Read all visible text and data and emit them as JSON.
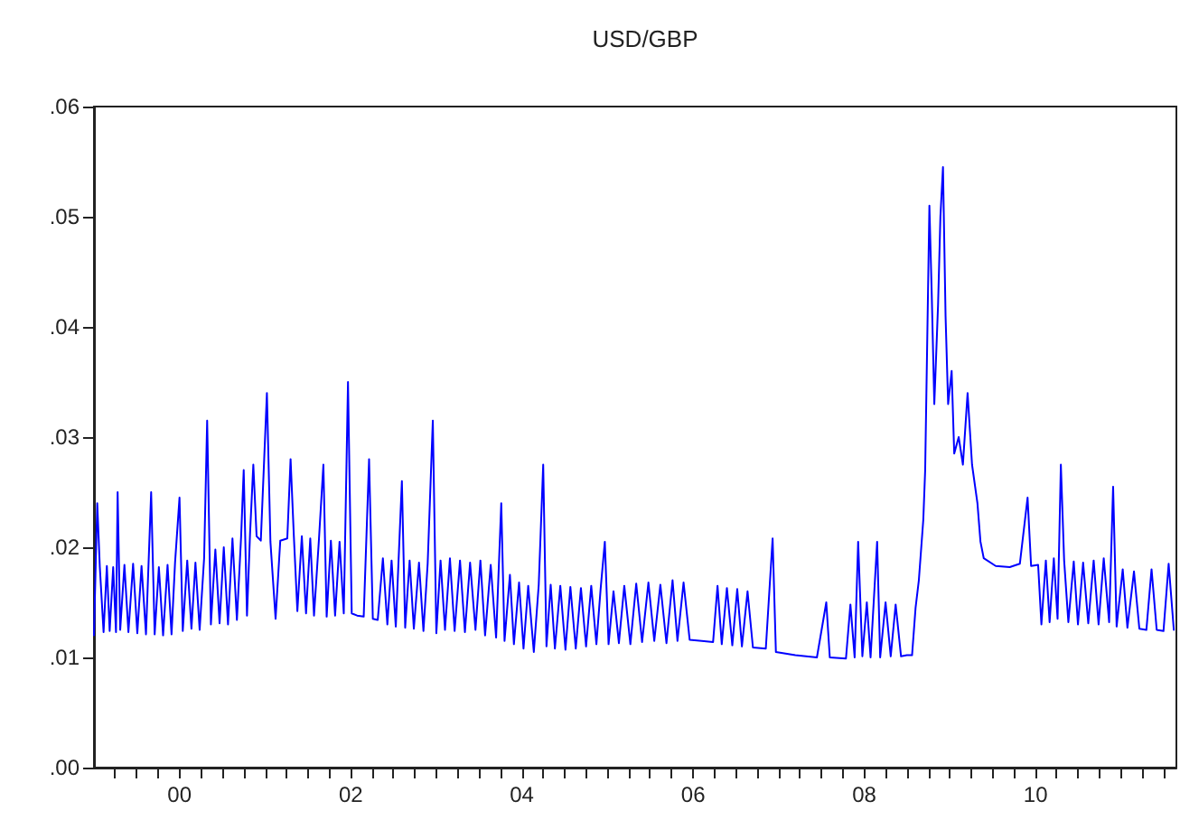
{
  "chart_data": {
    "type": "line",
    "title": "USD/GBP",
    "x": [
      "1999-01-01",
      "1999-01-15",
      "1999-01-26",
      "1999-02-11",
      "1999-02-25",
      "1999-03-09",
      "1999-03-24",
      "1999-04-05",
      "1999-04-12",
      "1999-04-23",
      "1999-05-11",
      "1999-05-28",
      "1999-06-17",
      "1999-07-05",
      "1999-07-23",
      "1999-08-11",
      "1999-09-02",
      "1999-09-17",
      "1999-10-05",
      "1999-10-23",
      "1999-11-11",
      "1999-11-28",
      "1999-12-13",
      "2000-01-01",
      "2000-01-15",
      "2000-02-03",
      "2000-02-21",
      "2000-03-09",
      "2000-03-27",
      "2000-04-15",
      "2000-04-28",
      "2000-05-14",
      "2000-06-02",
      "2000-06-20",
      "2000-07-08",
      "2000-07-26",
      "2000-08-14",
      "2000-09-02",
      "2000-09-20",
      "2000-10-01",
      "2000-10-15",
      "2000-10-28",
      "2000-11-11",
      "2000-11-25",
      "2000-12-13",
      "2001-01-08",
      "2001-01-23",
      "2001-02-14",
      "2001-03-06",
      "2001-04-05",
      "2001-04-19",
      "2001-05-03",
      "2001-05-18",
      "2001-06-06",
      "2001-06-24",
      "2001-07-12",
      "2001-07-28",
      "2001-08-18",
      "2001-09-06",
      "2001-09-20",
      "2001-10-08",
      "2001-10-26",
      "2001-11-14",
      "2001-12-02",
      "2001-12-20",
      "2002-01-05",
      "2002-01-28",
      "2002-02-25",
      "2002-03-20",
      "2002-04-05",
      "2002-04-26",
      "2002-05-18",
      "2002-06-06",
      "2002-06-24",
      "2002-07-12",
      "2002-08-07",
      "2002-08-21",
      "2002-09-09",
      "2002-09-27",
      "2002-10-19",
      "2002-11-07",
      "2002-11-25",
      "2002-12-17",
      "2003-01-01",
      "2003-01-19",
      "2003-02-07",
      "2003-02-28",
      "2003-03-20",
      "2003-04-12",
      "2003-05-03",
      "2003-05-25",
      "2003-06-17",
      "2003-07-08",
      "2003-07-28",
      "2003-08-21",
      "2003-09-13",
      "2003-10-05",
      "2003-10-19",
      "2003-11-11",
      "2003-11-28",
      "2003-12-20",
      "2004-01-08",
      "2004-01-28",
      "2004-02-21",
      "2004-03-13",
      "2004-04-01",
      "2004-04-15",
      "2004-05-03",
      "2004-05-21",
      "2004-06-13",
      "2004-07-05",
      "2004-07-26",
      "2004-08-18",
      "2004-09-09",
      "2004-10-01",
      "2004-10-23",
      "2004-11-14",
      "2004-12-02",
      "2004-12-20",
      "2005-01-05",
      "2005-01-26",
      "2005-02-18",
      "2005-03-13",
      "2005-04-08",
      "2005-05-03",
      "2005-05-28",
      "2005-06-24",
      "2005-07-19",
      "2005-08-14",
      "2005-09-09",
      "2005-10-05",
      "2005-10-26",
      "2005-11-21",
      "2005-12-17",
      "2006-02-07",
      "2006-03-27",
      "2006-04-15",
      "2006-05-03",
      "2006-05-25",
      "2006-06-17",
      "2006-07-08",
      "2006-07-28",
      "2006-08-21",
      "2006-09-13",
      "2006-11-07",
      "2006-12-06",
      "2006-12-20",
      "2007-03-13",
      "2007-06-13",
      "2007-07-23",
      "2007-08-07",
      "2007-10-15",
      "2007-11-03",
      "2007-11-21",
      "2007-12-06",
      "2007-12-24",
      "2008-01-12",
      "2008-01-28",
      "2008-02-25",
      "2008-03-09",
      "2008-04-01",
      "2008-04-23",
      "2008-05-14",
      "2008-06-06",
      "2008-07-01",
      "2008-07-23",
      "2008-08-07",
      "2008-08-21",
      "2008-09-09",
      "2008-09-17",
      "2008-10-05",
      "2008-10-15",
      "2008-10-26",
      "2008-11-11",
      "2008-11-21",
      "2008-12-02",
      "2008-12-13",
      "2008-12-24",
      "2009-01-08",
      "2009-01-19",
      "2009-02-07",
      "2009-02-25",
      "2009-03-17",
      "2009-04-05",
      "2009-04-28",
      "2009-05-11",
      "2009-05-25",
      "2009-07-15",
      "2009-09-13",
      "2009-10-26",
      "2009-11-28",
      "2009-12-13",
      "2010-01-12",
      "2010-01-26",
      "2010-02-14",
      "2010-03-02",
      "2010-03-20",
      "2010-04-05",
      "2010-04-19",
      "2010-05-03",
      "2010-05-21",
      "2010-06-13",
      "2010-07-01",
      "2010-07-23",
      "2010-08-14",
      "2010-09-06",
      "2010-09-27",
      "2010-10-19",
      "2010-11-11",
      "2010-11-28",
      "2010-12-13",
      "2011-01-08",
      "2011-01-28",
      "2011-02-25",
      "2011-03-20",
      "2011-04-19",
      "2011-05-11",
      "2011-06-02",
      "2011-07-01",
      "2011-07-23",
      "2011-08-14"
    ],
    "series": [
      {
        "color": "#0000ff",
        "values": [
          0.012,
          0.024,
          0.0182,
          0.0123,
          0.0183,
          0.0124,
          0.0182,
          0.0123,
          0.025,
          0.0125,
          0.0184,
          0.0123,
          0.0185,
          0.0122,
          0.0183,
          0.0121,
          0.025,
          0.0121,
          0.0182,
          0.012,
          0.0184,
          0.0121,
          0.0186,
          0.0245,
          0.0124,
          0.0188,
          0.0126,
          0.0186,
          0.0125,
          0.019,
          0.0315,
          0.013,
          0.0198,
          0.0131,
          0.02,
          0.013,
          0.0208,
          0.0134,
          0.021,
          0.027,
          0.0138,
          0.0212,
          0.0275,
          0.021,
          0.0206,
          0.034,
          0.0205,
          0.0135,
          0.0206,
          0.0208,
          0.028,
          0.021,
          0.0142,
          0.021,
          0.014,
          0.0208,
          0.0138,
          0.0207,
          0.0275,
          0.0137,
          0.0206,
          0.0138,
          0.0205,
          0.014,
          0.035,
          0.014,
          0.0138,
          0.0137,
          0.028,
          0.0135,
          0.0134,
          0.019,
          0.013,
          0.0188,
          0.0128,
          0.026,
          0.0127,
          0.0188,
          0.0126,
          0.0186,
          0.0124,
          0.0185,
          0.0315,
          0.0122,
          0.0188,
          0.0125,
          0.019,
          0.0124,
          0.0188,
          0.0123,
          0.0186,
          0.0125,
          0.0188,
          0.012,
          0.0184,
          0.0118,
          0.024,
          0.0115,
          0.0175,
          0.0112,
          0.0168,
          0.0108,
          0.0165,
          0.0105,
          0.0166,
          0.0275,
          0.011,
          0.0166,
          0.0108,
          0.0165,
          0.0107,
          0.0164,
          0.0108,
          0.0163,
          0.011,
          0.0165,
          0.0112,
          0.0162,
          0.0205,
          0.0112,
          0.016,
          0.0113,
          0.0165,
          0.0112,
          0.0167,
          0.0114,
          0.0168,
          0.0115,
          0.0166,
          0.0113,
          0.017,
          0.0115,
          0.0168,
          0.0116,
          0.0115,
          0.0114,
          0.0165,
          0.0112,
          0.0163,
          0.0111,
          0.0162,
          0.011,
          0.016,
          0.0109,
          0.0108,
          0.0208,
          0.0105,
          0.0102,
          0.01,
          0.015,
          0.01,
          0.0099,
          0.0148,
          0.01,
          0.0205,
          0.0101,
          0.015,
          0.01,
          0.0205,
          0.01,
          0.015,
          0.0101,
          0.0148,
          0.0101,
          0.0102,
          0.0102,
          0.0145,
          0.017,
          0.0225,
          0.027,
          0.051,
          0.043,
          0.033,
          0.042,
          0.05,
          0.0545,
          0.041,
          0.033,
          0.036,
          0.0285,
          0.03,
          0.0275,
          0.034,
          0.0275,
          0.024,
          0.0205,
          0.019,
          0.0183,
          0.0182,
          0.0185,
          0.0245,
          0.0183,
          0.0184,
          0.013,
          0.0188,
          0.0132,
          0.019,
          0.0135,
          0.0275,
          0.0188,
          0.0132,
          0.0187,
          0.013,
          0.0186,
          0.0131,
          0.0188,
          0.013,
          0.019,
          0.0132,
          0.0255,
          0.0128,
          0.018,
          0.0127,
          0.0178,
          0.0126,
          0.0125,
          0.018,
          0.0125,
          0.0124,
          0.0185,
          0.0125
        ]
      }
    ],
    "xlim": [
      "1999-01-01",
      "2011-08-25"
    ],
    "xticks": [
      {
        "value": "1999-04",
        "label": null
      },
      {
        "value": "1999-07",
        "label": null
      },
      {
        "value": "1999-10",
        "label": null
      },
      {
        "value": "2000",
        "label": "00"
      },
      {
        "value": "2000-04",
        "label": null
      },
      {
        "value": "2000-07",
        "label": null
      },
      {
        "value": "2000-10",
        "label": null
      },
      {
        "value": "2001",
        "label": null
      },
      {
        "value": "2001-04",
        "label": null
      },
      {
        "value": "2001-07",
        "label": null
      },
      {
        "value": "2001-10",
        "label": null
      },
      {
        "value": "2002",
        "label": "02"
      },
      {
        "value": "2002-04",
        "label": null
      },
      {
        "value": "2002-07",
        "label": null
      },
      {
        "value": "2002-10",
        "label": null
      },
      {
        "value": "2003",
        "label": null
      },
      {
        "value": "2003-04",
        "label": null
      },
      {
        "value": "2003-07",
        "label": null
      },
      {
        "value": "2003-10",
        "label": null
      },
      {
        "value": "2004",
        "label": "04"
      },
      {
        "value": "2004-04",
        "label": null
      },
      {
        "value": "2004-07",
        "label": null
      },
      {
        "value": "2004-10",
        "label": null
      },
      {
        "value": "2005",
        "label": null
      },
      {
        "value": "2005-04",
        "label": null
      },
      {
        "value": "2005-07",
        "label": null
      },
      {
        "value": "2005-10",
        "label": null
      },
      {
        "value": "2006",
        "label": "06"
      },
      {
        "value": "2006-04",
        "label": null
      },
      {
        "value": "2006-07",
        "label": null
      },
      {
        "value": "2006-10",
        "label": null
      },
      {
        "value": "2007",
        "label": null
      },
      {
        "value": "2007-04",
        "label": null
      },
      {
        "value": "2007-07",
        "label": null
      },
      {
        "value": "2007-10",
        "label": null
      },
      {
        "value": "2008",
        "label": "08"
      },
      {
        "value": "2008-04",
        "label": null
      },
      {
        "value": "2008-07",
        "label": null
      },
      {
        "value": "2008-10",
        "label": null
      },
      {
        "value": "2009",
        "label": null
      },
      {
        "value": "2009-04",
        "label": null
      },
      {
        "value": "2009-07",
        "label": null
      },
      {
        "value": "2009-10",
        "label": null
      },
      {
        "value": "2010",
        "label": "10"
      },
      {
        "value": "2010-04",
        "label": null
      },
      {
        "value": "2010-07",
        "label": null
      },
      {
        "value": "2010-10",
        "label": null
      },
      {
        "value": "2011",
        "label": null
      },
      {
        "value": "2011-04",
        "label": null
      },
      {
        "value": "2011-07",
        "label": null
      }
    ],
    "ylim": [
      0,
      0.06
    ],
    "yticks": [
      {
        "value": 0,
        "label": ".00"
      },
      {
        "value": 0.01,
        "label": ".01"
      },
      {
        "value": 0.02,
        "label": ".02"
      },
      {
        "value": 0.03,
        "label": ".03"
      },
      {
        "value": 0.04,
        "label": ".04"
      },
      {
        "value": 0.05,
        "label": ".05"
      },
      {
        "value": 0.06,
        "label": ".06"
      }
    ],
    "grid": false,
    "marker": "none",
    "line_style": "solid"
  }
}
